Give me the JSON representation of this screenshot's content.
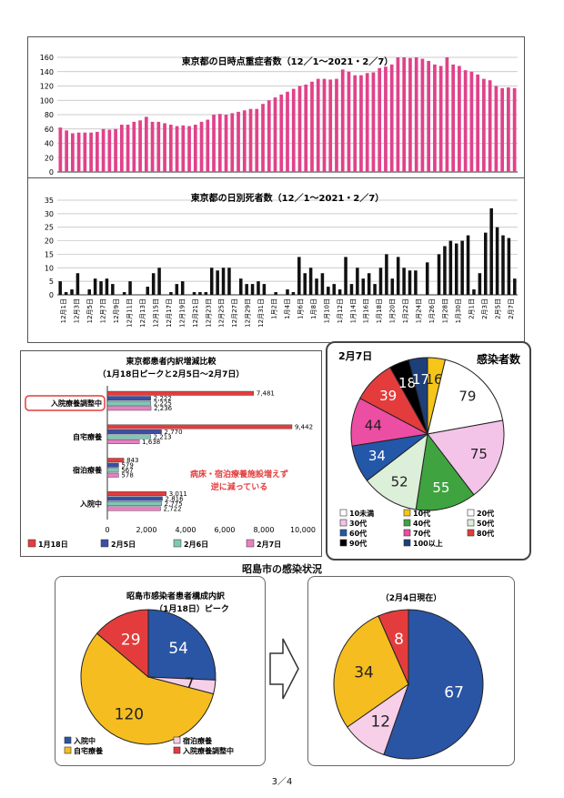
{
  "page": {
    "section_title": "昭島市の感染状況",
    "page_number": "3／4"
  },
  "chart_data": [
    {
      "type": "bar",
      "title": "東京都の日時点重症者数（12／1～2021・2／7）",
      "color": "#e0428a",
      "ylim": [
        0,
        160
      ],
      "yticks": [
        "0",
        "20",
        "40",
        "60",
        "80",
        "100",
        "120",
        "140",
        "160"
      ],
      "values": [
        62,
        58,
        54,
        55,
        55,
        55,
        56,
        60,
        59,
        60,
        66,
        66,
        70,
        72,
        77,
        70,
        70,
        68,
        66,
        64,
        65,
        64,
        66,
        70,
        73,
        80,
        81,
        80,
        82,
        84,
        86,
        88,
        88,
        95,
        100,
        104,
        108,
        112,
        116,
        120,
        122,
        126,
        130,
        130,
        129,
        130,
        143,
        140,
        135,
        135,
        138,
        139,
        145,
        147,
        150,
        160,
        160,
        159,
        160,
        158,
        155,
        150,
        148,
        160,
        150,
        148,
        142,
        140,
        136,
        130,
        128,
        120,
        117,
        118,
        117
      ]
    },
    {
      "type": "bar",
      "title": "東京都の日別死者数（12／1～2021・2／7）",
      "color": "#111111",
      "ylim": [
        0,
        35
      ],
      "yticks": [
        "0",
        "5",
        "10",
        "15",
        "20",
        "25",
        "30",
        "35"
      ],
      "values": [
        5,
        1,
        2,
        8,
        0,
        2,
        6,
        5,
        6,
        4,
        0,
        1,
        5,
        0,
        0,
        3,
        8,
        10,
        0,
        1,
        4,
        5,
        0,
        1,
        1,
        1,
        10,
        9,
        10,
        10,
        0,
        6,
        4,
        4,
        5,
        4,
        0,
        1,
        0,
        2,
        1,
        14,
        8,
        10,
        6,
        8,
        3,
        4,
        2,
        14,
        4,
        10,
        6,
        8,
        4,
        10,
        15,
        6,
        14,
        10,
        9,
        9,
        0,
        12,
        0,
        15,
        18,
        20,
        19,
        20,
        22,
        2,
        8,
        23,
        32,
        25,
        22,
        21,
        6
      ],
      "xlabels": [
        "12月1日",
        "12月3日",
        "12月5日",
        "12月7日",
        "12月9日",
        "12月11日",
        "12月13日",
        "12月15日",
        "12月17日",
        "12月19日",
        "12月21日",
        "12月23日",
        "12月25日",
        "12月27日",
        "12月29日",
        "12月31日",
        "1月2日",
        "1月4日",
        "1月6日",
        "1月8日",
        "1月10日",
        "1月12日",
        "1月14日",
        "1月16日",
        "1月18日",
        "1月20日",
        "1月22日",
        "1月24日",
        "1月26日",
        "1月28日",
        "1月30日",
        "2月1日",
        "2月3日",
        "2月5日",
        "2月7日"
      ]
    },
    {
      "type": "bar",
      "title": "東京都患者内訳増減比較",
      "subtitle": "（1月18日ピークと2月5日～2月7日）",
      "orientation": "horizontal",
      "xlim": [
        0,
        10000
      ],
      "xticks": [
        "0",
        "2,000",
        "4,000",
        "6,000",
        "8,000",
        "10,000"
      ],
      "categories": [
        "入院療養調整中",
        "自宅療養",
        "宿泊療養",
        "入院中"
      ],
      "series": [
        {
          "name": "1月18日",
          "color": "#e43c3c",
          "values": [
            7481,
            9442,
            843,
            3011
          ],
          "labels": [
            "7,481",
            "9,442",
            "843",
            "3,011"
          ]
        },
        {
          "name": "2月5日",
          "color": "#3b4fa8",
          "values": [
            2222,
            2770,
            579,
            2816
          ],
          "labels": [
            "2,222",
            "2,770",
            "579",
            "2,816"
          ]
        },
        {
          "name": "2月6日",
          "color": "#7fc8b5",
          "values": [
            2225,
            2213,
            567,
            2775
          ],
          "labels": [
            "2,225",
            "2,213",
            "567",
            "2,775"
          ]
        },
        {
          "name": "2月7日",
          "color": "#e87fc4",
          "values": [
            2236,
            1638,
            578,
            2722
          ],
          "labels": [
            "2,236",
            "1,638",
            "578",
            "2,722"
          ]
        }
      ],
      "annotation_line1": "病床・宿泊療養施設増えず",
      "annotation_line2": "逆に減っている"
    },
    {
      "type": "pie",
      "title": "2月7日",
      "side_title": "感染者数",
      "slices": [
        {
          "label": "10代",
          "value": 16,
          "color": "#f5c518"
        },
        {
          "label": "20代",
          "value": 79,
          "color": "#ffffff"
        },
        {
          "label": "30代",
          "value": 75,
          "color": "#f3c3e8"
        },
        {
          "label": "40代",
          "value": 55,
          "color": "#3fa43f"
        },
        {
          "label": "50代",
          "value": 52,
          "color": "#dcefd9"
        },
        {
          "label": "60代",
          "value": 34,
          "color": "#2357a8"
        },
        {
          "label": "70代",
          "value": 44,
          "color": "#ec4ea3"
        },
        {
          "label": "80代",
          "value": 39,
          "color": "#e43c3c"
        },
        {
          "label": "90代",
          "value": 18,
          "color": "#000000"
        },
        {
          "label": "100以上",
          "value": 17,
          "color": "#1d3f7a"
        }
      ],
      "legend": [
        "10未満",
        "10代",
        "20代",
        "30代",
        "40代",
        "50代",
        "60代",
        "70代",
        "80代",
        "90代",
        "100以上"
      ]
    },
    {
      "type": "pie",
      "title": "昭島市感染者患者構成内訳",
      "subtitle": "（1月18日）ピーク",
      "slices": [
        {
          "label": "入院中",
          "value": 54,
          "color": "#2a55a5"
        },
        {
          "label": "宿泊療養",
          "value": 7,
          "color": "#f7cfe8"
        },
        {
          "label": "自宅療養",
          "value": 120,
          "color": "#f5bd1f"
        },
        {
          "label": "入院療養調整中",
          "value": 29,
          "color": "#e43c3c"
        }
      ]
    },
    {
      "type": "pie",
      "title": "（2月4日現在）",
      "slices": [
        {
          "label": "入院中",
          "value": 67,
          "color": "#2a55a5"
        },
        {
          "label": "宿泊療養",
          "value": 12,
          "color": "#f7cfe8"
        },
        {
          "label": "自宅療養",
          "value": 34,
          "color": "#f5bd1f"
        },
        {
          "label": "入院療養調整中",
          "value": 8,
          "color": "#e43c3c"
        }
      ]
    }
  ]
}
